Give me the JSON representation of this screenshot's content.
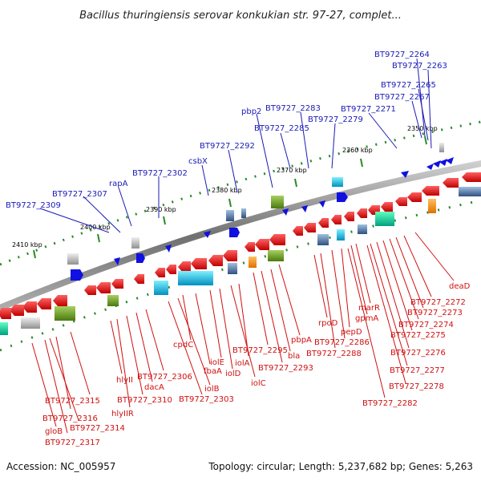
{
  "title": "Bacillus thuringiensis serovar konkukian str. 97-27, complet...",
  "footer": {
    "accession": "Accession: NC_005957",
    "summary": "Topology: circular; Length: 5,237,682 bp; Genes: 5,263"
  },
  "ticks": [
    "2350 kbp",
    "2360 kbp",
    "2370 kbp",
    "2380 kbp",
    "2390 kbp",
    "2400 kbp",
    "2410 kbp"
  ],
  "genes_top": [
    "BT9727_2264",
    "BT9727_2263",
    "BT9727_2265",
    "BT9727_2267",
    "pbp2",
    "BT9727_2283",
    "BT9727_2271",
    "BT9727_2285",
    "BT9727_2279",
    "BT9727_2292",
    "csbX",
    "BT9727_2302",
    "rapA",
    "BT9727_2307",
    "BT9727_2309"
  ],
  "genes_bottom": [
    "deaD",
    "BT9727_2272",
    "BT9727_2273",
    "marR",
    "BT9727_2274",
    "gpmA",
    "BT9727_2275",
    "rpoD",
    "pepD",
    "BT9727_2286",
    "BT9727_2276",
    "pbpA",
    "BT9727_2288",
    "bla",
    "BT9727_2277",
    "BT9727_2295",
    "iolA",
    "BT9727_2293",
    "iolE",
    "iolD",
    "cpdC",
    "fbaA",
    "iolC",
    "BT9727_2278",
    "BT9727_2306",
    "hlyII",
    "iolB",
    "dacA",
    "BT9727_2303",
    "BT9727_2310",
    "BT9727_2282",
    "BT9727_2315",
    "hlyIIR",
    "BT9727_2316",
    "BT9727_2314",
    "gloB",
    "BT9727_2317"
  ],
  "colors": {
    "label_blue": "#1a1ab8",
    "label_red": "#d01010",
    "forward_gene": "#1010e0",
    "reverse_gene": "#e01010",
    "backbone": "#888888"
  }
}
